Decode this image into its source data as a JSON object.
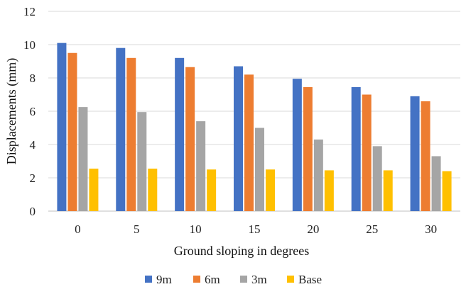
{
  "chart_data": {
    "type": "bar",
    "title": "",
    "xlabel": "Ground sloping in degrees",
    "ylabel": "Displacements (mm)",
    "categories": [
      "0",
      "5",
      "10",
      "15",
      "20",
      "25",
      "30"
    ],
    "ylim": [
      0,
      12
    ],
    "yticks": [
      "0",
      "2",
      "4",
      "6",
      "8",
      "10",
      "12"
    ],
    "grid": true,
    "legend_position": "bottom",
    "series": [
      {
        "name": "9m",
        "color": "#4472C4",
        "values": [
          10.1,
          9.8,
          9.2,
          8.7,
          7.95,
          7.45,
          6.9
        ]
      },
      {
        "name": "6m",
        "color": "#ED7D31",
        "values": [
          9.5,
          9.2,
          8.65,
          8.2,
          7.45,
          7.0,
          6.6
        ]
      },
      {
        "name": "3m",
        "color": "#A5A5A5",
        "values": [
          6.25,
          5.95,
          5.4,
          5.0,
          4.3,
          3.9,
          3.3
        ]
      },
      {
        "name": "Base",
        "color": "#FFC000",
        "values": [
          2.55,
          2.55,
          2.5,
          2.5,
          2.45,
          2.45,
          2.4
        ]
      }
    ]
  }
}
